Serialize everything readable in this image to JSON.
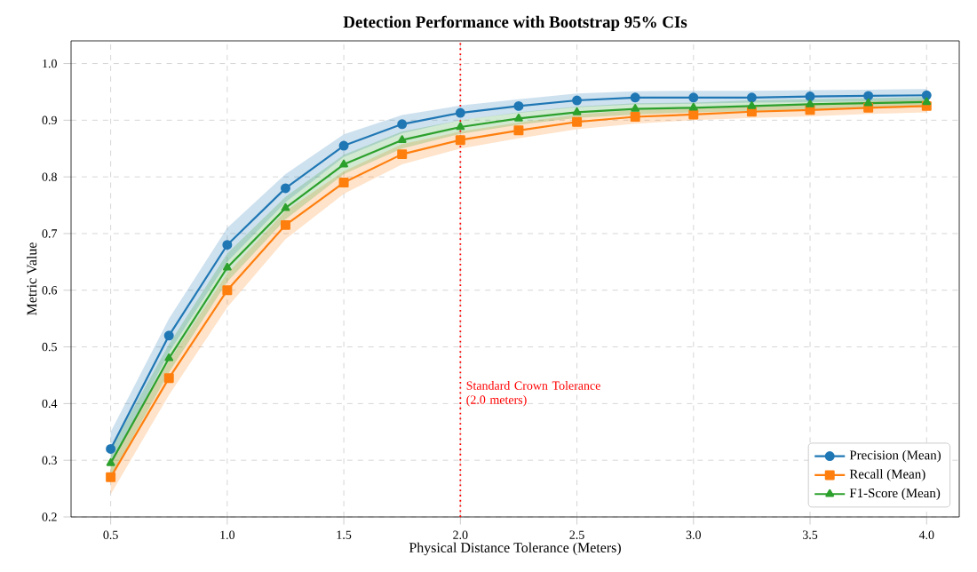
{
  "chart_data": {
    "type": "line",
    "title": "Detection Performance with Bootstrap 95% CIs",
    "xlabel": "Physical Distance Tolerance (Meters)",
    "ylabel": "Metric Value",
    "x": [
      0.5,
      0.75,
      1.0,
      1.25,
      1.5,
      1.75,
      2.0,
      2.25,
      2.5,
      2.75,
      3.0,
      3.25,
      3.5,
      3.75,
      4.0
    ],
    "series": [
      {
        "name": "Precision (Mean)",
        "color": "#1f77b4",
        "marker": "circle",
        "values": [
          0.32,
          0.52,
          0.68,
          0.78,
          0.855,
          0.893,
          0.913,
          0.925,
          0.935,
          0.94,
          0.94,
          0.94,
          0.942,
          0.943,
          0.944
        ],
        "lower": [
          0.29,
          0.49,
          0.65,
          0.755,
          0.835,
          0.877,
          0.9,
          0.913,
          0.923,
          0.928,
          0.929,
          0.931,
          0.932,
          0.933,
          0.934
        ],
        "upper": [
          0.35,
          0.55,
          0.71,
          0.805,
          0.875,
          0.909,
          0.926,
          0.937,
          0.947,
          0.951,
          0.952,
          0.952,
          0.953,
          0.954,
          0.955
        ]
      },
      {
        "name": "Recall (Mean)",
        "color": "#ff7f0e",
        "marker": "square",
        "values": [
          0.27,
          0.445,
          0.6,
          0.715,
          0.79,
          0.84,
          0.865,
          0.882,
          0.897,
          0.906,
          0.91,
          0.915,
          0.918,
          0.922,
          0.925
        ],
        "lower": [
          0.24,
          0.415,
          0.57,
          0.69,
          0.77,
          0.822,
          0.85,
          0.868,
          0.884,
          0.894,
          0.9,
          0.904,
          0.907,
          0.911,
          0.914
        ],
        "upper": [
          0.3,
          0.475,
          0.63,
          0.74,
          0.81,
          0.858,
          0.88,
          0.896,
          0.91,
          0.918,
          0.921,
          0.926,
          0.929,
          0.933,
          0.936
        ]
      },
      {
        "name": "F1-Score (Mean)",
        "color": "#2ca02c",
        "marker": "triangle",
        "values": [
          0.295,
          0.48,
          0.64,
          0.745,
          0.822,
          0.865,
          0.888,
          0.903,
          0.914,
          0.92,
          0.922,
          0.925,
          0.928,
          0.93,
          0.932
        ],
        "lower": [
          0.27,
          0.455,
          0.615,
          0.725,
          0.805,
          0.85,
          0.876,
          0.892,
          0.904,
          0.91,
          0.914,
          0.916,
          0.919,
          0.921,
          0.923
        ],
        "upper": [
          0.32,
          0.505,
          0.665,
          0.765,
          0.839,
          0.88,
          0.9,
          0.914,
          0.924,
          0.93,
          0.931,
          0.935,
          0.937,
          0.939,
          0.941
        ]
      }
    ],
    "xlim": [
      0.33,
      4.14
    ],
    "ylim": [
      0.2,
      1.04
    ],
    "xticks": [
      {
        "value": 0.5,
        "label": "0.5"
      },
      {
        "value": 1.0,
        "label": "1.0"
      },
      {
        "value": 1.5,
        "label": "1.5"
      },
      {
        "value": 2.0,
        "label": "2.0"
      },
      {
        "value": 2.5,
        "label": "2.5"
      },
      {
        "value": 3.0,
        "label": "3.0"
      },
      {
        "value": 3.5,
        "label": "3.5"
      },
      {
        "value": 4.0,
        "label": "4.0"
      }
    ],
    "yticks": [
      {
        "value": 0.2,
        "label": "0.2"
      },
      {
        "value": 0.3,
        "label": "0.3"
      },
      {
        "value": 0.4,
        "label": "0.4"
      },
      {
        "value": 0.5,
        "label": "0.5"
      },
      {
        "value": 0.6,
        "label": "0.6"
      },
      {
        "value": 0.7,
        "label": "0.7"
      },
      {
        "value": 0.8,
        "label": "0.8"
      },
      {
        "value": 0.9,
        "label": "0.9"
      },
      {
        "value": 1.0,
        "label": "1.0"
      }
    ],
    "ref_lines": [
      {
        "axis": "x",
        "value": 2.0,
        "label": "Standard Crown Tolerance (2.0 meters)",
        "color": "#ff0000",
        "line_style": "dotted"
      }
    ],
    "grid": true,
    "legend": "bottom right",
    "line_style": "solid"
  }
}
